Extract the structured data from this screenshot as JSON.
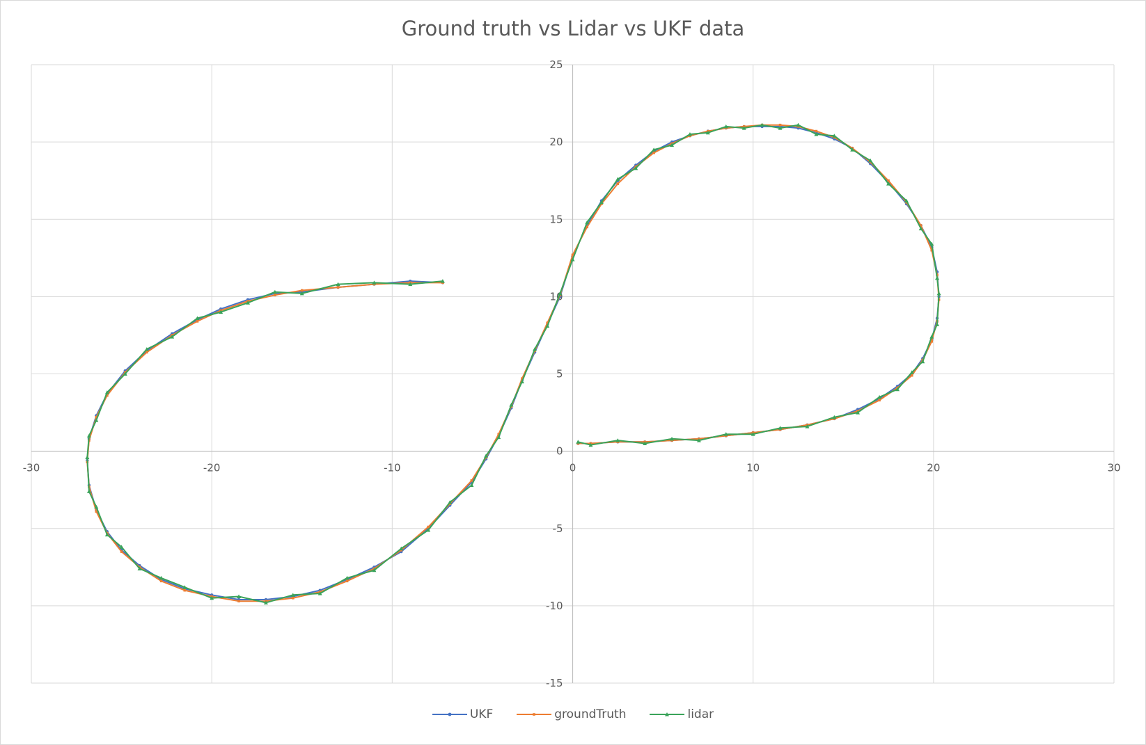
{
  "chart_data": {
    "type": "scatter",
    "title": "Ground truth vs Lidar vs UKF data",
    "xlabel": "",
    "ylabel": "",
    "xlim": [
      -30,
      30
    ],
    "ylim": [
      -15,
      25
    ],
    "x_ticks": [
      -30,
      -20,
      -10,
      0,
      10,
      20,
      30
    ],
    "y_ticks": [
      -15,
      -10,
      -5,
      0,
      5,
      10,
      15,
      20,
      25
    ],
    "grid": true,
    "legend_position": "bottom",
    "series": [
      {
        "name": "UKF",
        "color": "#4472c4",
        "x": [
          -7.2,
          -9.0,
          -11.0,
          -13.0,
          -15.0,
          -16.5,
          -18.0,
          -19.5,
          -20.8,
          -22.2,
          -23.6,
          -24.8,
          -25.8,
          -26.4,
          -26.8,
          -26.9,
          -26.8,
          -26.4,
          -25.8,
          -25.0,
          -24.0,
          -22.8,
          -21.5,
          -20.0,
          -18.5,
          -17.0,
          -15.5,
          -14.0,
          -12.5,
          -11.0,
          -9.5,
          -8.0,
          -6.8,
          -5.6,
          -4.8,
          -4.1,
          -3.4,
          -2.8,
          -2.1,
          -1.4,
          -0.7,
          0.0,
          0.8,
          1.6,
          2.5,
          3.5,
          4.5,
          5.5,
          6.5,
          7.5,
          8.5,
          9.5,
          10.5,
          11.5,
          12.5,
          13.5,
          14.5,
          15.5,
          16.5,
          17.5,
          18.5,
          19.3,
          19.9,
          20.2,
          20.3,
          20.2,
          19.9,
          19.4,
          18.8,
          18.0,
          17.0,
          15.8,
          14.5,
          13.0,
          11.5,
          10.0,
          8.5,
          7.0,
          5.5,
          4.0,
          2.5,
          1.0,
          0.3
        ],
        "y": [
          10.9,
          11.0,
          10.8,
          10.6,
          10.3,
          10.2,
          9.8,
          9.2,
          8.5,
          7.6,
          6.5,
          5.2,
          3.7,
          2.3,
          0.8,
          -0.6,
          -2.2,
          -3.8,
          -5.2,
          -6.4,
          -7.4,
          -8.3,
          -8.9,
          -9.3,
          -9.6,
          -9.6,
          -9.4,
          -9.0,
          -8.3,
          -7.5,
          -6.5,
          -5.0,
          -3.5,
          -2.0,
          -0.5,
          1.0,
          2.8,
          4.6,
          6.4,
          8.2,
          10.0,
          12.6,
          14.6,
          16.2,
          17.5,
          18.5,
          19.4,
          20.0,
          20.4,
          20.7,
          20.9,
          21.0,
          21.0,
          21.0,
          20.9,
          20.6,
          20.2,
          19.6,
          18.6,
          17.4,
          16.0,
          14.6,
          13.2,
          11.6,
          10.0,
          8.6,
          7.2,
          6.0,
          5.0,
          4.2,
          3.4,
          2.7,
          2.1,
          1.7,
          1.4,
          1.2,
          1.0,
          0.8,
          0.7,
          0.6,
          0.6,
          0.5,
          0.5
        ]
      },
      {
        "name": "groundTruth",
        "color": "#ed7d31",
        "x": [
          -7.2,
          -9.0,
          -11.0,
          -13.0,
          -15.0,
          -16.5,
          -18.0,
          -19.5,
          -20.8,
          -22.2,
          -23.6,
          -24.8,
          -25.8,
          -26.4,
          -26.8,
          -26.9,
          -26.8,
          -26.4,
          -25.8,
          -25.0,
          -24.0,
          -22.8,
          -21.5,
          -20.0,
          -18.5,
          -17.0,
          -15.5,
          -14.0,
          -12.5,
          -11.0,
          -9.5,
          -8.0,
          -6.8,
          -5.6,
          -4.8,
          -4.1,
          -3.4,
          -2.8,
          -2.1,
          -1.4,
          -0.7,
          0.0,
          0.8,
          1.6,
          2.5,
          3.5,
          4.5,
          5.5,
          6.5,
          7.5,
          8.5,
          9.5,
          10.5,
          11.5,
          12.5,
          13.5,
          14.5,
          15.5,
          16.5,
          17.5,
          18.5,
          19.3,
          19.9,
          20.2,
          20.3,
          20.2,
          19.9,
          19.4,
          18.8,
          18.0,
          17.0,
          15.8,
          14.5,
          13.0,
          11.5,
          10.0,
          8.5,
          7.0,
          5.5,
          4.0,
          2.5,
          1.0,
          0.3
        ],
        "y": [
          10.9,
          10.9,
          10.8,
          10.6,
          10.4,
          10.1,
          9.7,
          9.1,
          8.4,
          7.5,
          6.4,
          5.1,
          3.6,
          2.2,
          0.7,
          -0.7,
          -2.3,
          -3.9,
          -5.3,
          -6.5,
          -7.5,
          -8.4,
          -9.0,
          -9.4,
          -9.7,
          -9.7,
          -9.5,
          -9.1,
          -8.4,
          -7.6,
          -6.4,
          -4.9,
          -3.4,
          -1.9,
          -0.4,
          1.1,
          2.9,
          4.7,
          6.5,
          8.3,
          10.1,
          12.7,
          14.5,
          16.0,
          17.3,
          18.4,
          19.3,
          19.9,
          20.4,
          20.7,
          20.9,
          21.0,
          21.1,
          21.1,
          21.0,
          20.7,
          20.3,
          19.6,
          18.7,
          17.5,
          16.1,
          14.6,
          13.0,
          11.4,
          9.8,
          8.4,
          7.1,
          5.9,
          4.9,
          4.1,
          3.3,
          2.6,
          2.1,
          1.7,
          1.4,
          1.2,
          1.0,
          0.8,
          0.7,
          0.6,
          0.6,
          0.5,
          0.5
        ]
      },
      {
        "name": "lidar",
        "color": "#3aa35a",
        "x": [
          -7.2,
          -9.0,
          -11.0,
          -13.0,
          -15.0,
          -16.5,
          -18.0,
          -19.5,
          -20.8,
          -22.2,
          -23.6,
          -24.8,
          -25.8,
          -26.4,
          -26.8,
          -26.9,
          -26.8,
          -26.4,
          -25.8,
          -25.0,
          -24.0,
          -22.8,
          -21.5,
          -20.0,
          -18.5,
          -17.0,
          -15.5,
          -14.0,
          -12.5,
          -11.0,
          -9.5,
          -8.0,
          -6.8,
          -5.6,
          -4.8,
          -4.1,
          -3.4,
          -2.8,
          -2.1,
          -1.4,
          -0.7,
          0.0,
          0.8,
          1.6,
          2.5,
          3.5,
          4.5,
          5.5,
          6.5,
          7.5,
          8.5,
          9.5,
          10.5,
          11.5,
          12.5,
          13.5,
          14.5,
          15.5,
          16.5,
          17.5,
          18.5,
          19.3,
          19.9,
          20.2,
          20.3,
          20.2,
          19.9,
          19.4,
          18.8,
          18.0,
          17.0,
          15.8,
          14.5,
          13.0,
          11.5,
          10.0,
          8.5,
          7.0,
          5.5,
          4.0,
          2.5,
          1.0,
          0.3
        ],
        "y": [
          11.0,
          10.8,
          10.9,
          10.8,
          10.2,
          10.3,
          9.6,
          9.0,
          8.6,
          7.4,
          6.6,
          5.0,
          3.8,
          2.0,
          1.0,
          -0.4,
          -2.6,
          -3.6,
          -5.4,
          -6.2,
          -7.6,
          -8.2,
          -8.8,
          -9.5,
          -9.4,
          -9.8,
          -9.3,
          -9.2,
          -8.2,
          -7.7,
          -6.3,
          -5.1,
          -3.3,
          -2.2,
          -0.3,
          0.9,
          3.0,
          4.5,
          6.6,
          8.1,
          10.2,
          12.4,
          14.8,
          16.1,
          17.6,
          18.3,
          19.5,
          19.8,
          20.5,
          20.6,
          21.0,
          20.9,
          21.1,
          20.9,
          21.1,
          20.5,
          20.4,
          19.5,
          18.8,
          17.3,
          16.2,
          14.4,
          13.4,
          11.2,
          10.2,
          8.2,
          7.4,
          5.8,
          5.1,
          4.0,
          3.5,
          2.5,
          2.2,
          1.6,
          1.5,
          1.1,
          1.1,
          0.7,
          0.8,
          0.5,
          0.7,
          0.4,
          0.6
        ]
      }
    ]
  }
}
